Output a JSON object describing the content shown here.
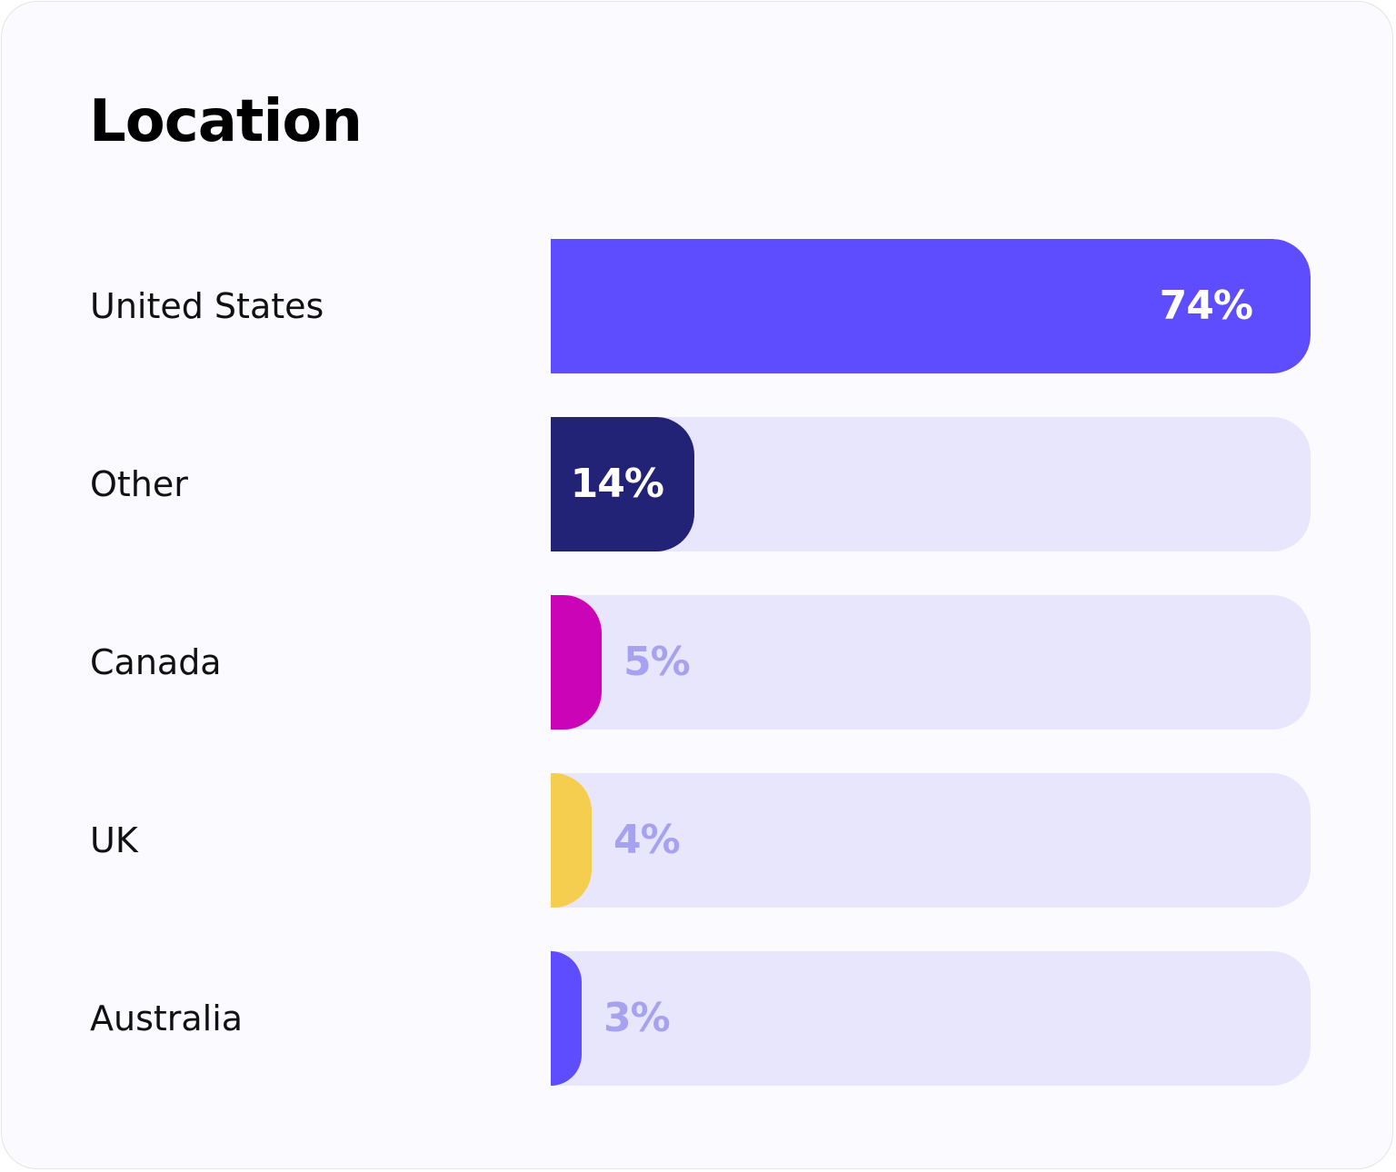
{
  "chart_data": {
    "type": "bar",
    "orientation": "horizontal",
    "title": "Location",
    "categories": [
      "United States",
      "Other",
      "Canada",
      "UK",
      "Australia"
    ],
    "values": [
      74,
      14,
      5,
      4,
      3
    ],
    "value_labels": [
      "74%",
      "14%",
      "5%",
      "4%",
      "3%"
    ],
    "unit": "%",
    "xlim": [
      0,
      74
    ],
    "colors": [
      "#5d4dff",
      "#222277",
      "#cc04b8",
      "#f6ce4f",
      "#5d4dff"
    ],
    "track_color": "#e8e6fd",
    "label_color_inside": "#ffffff",
    "label_color_outside": "#a7a2ef",
    "grid": false,
    "legend": "none"
  }
}
